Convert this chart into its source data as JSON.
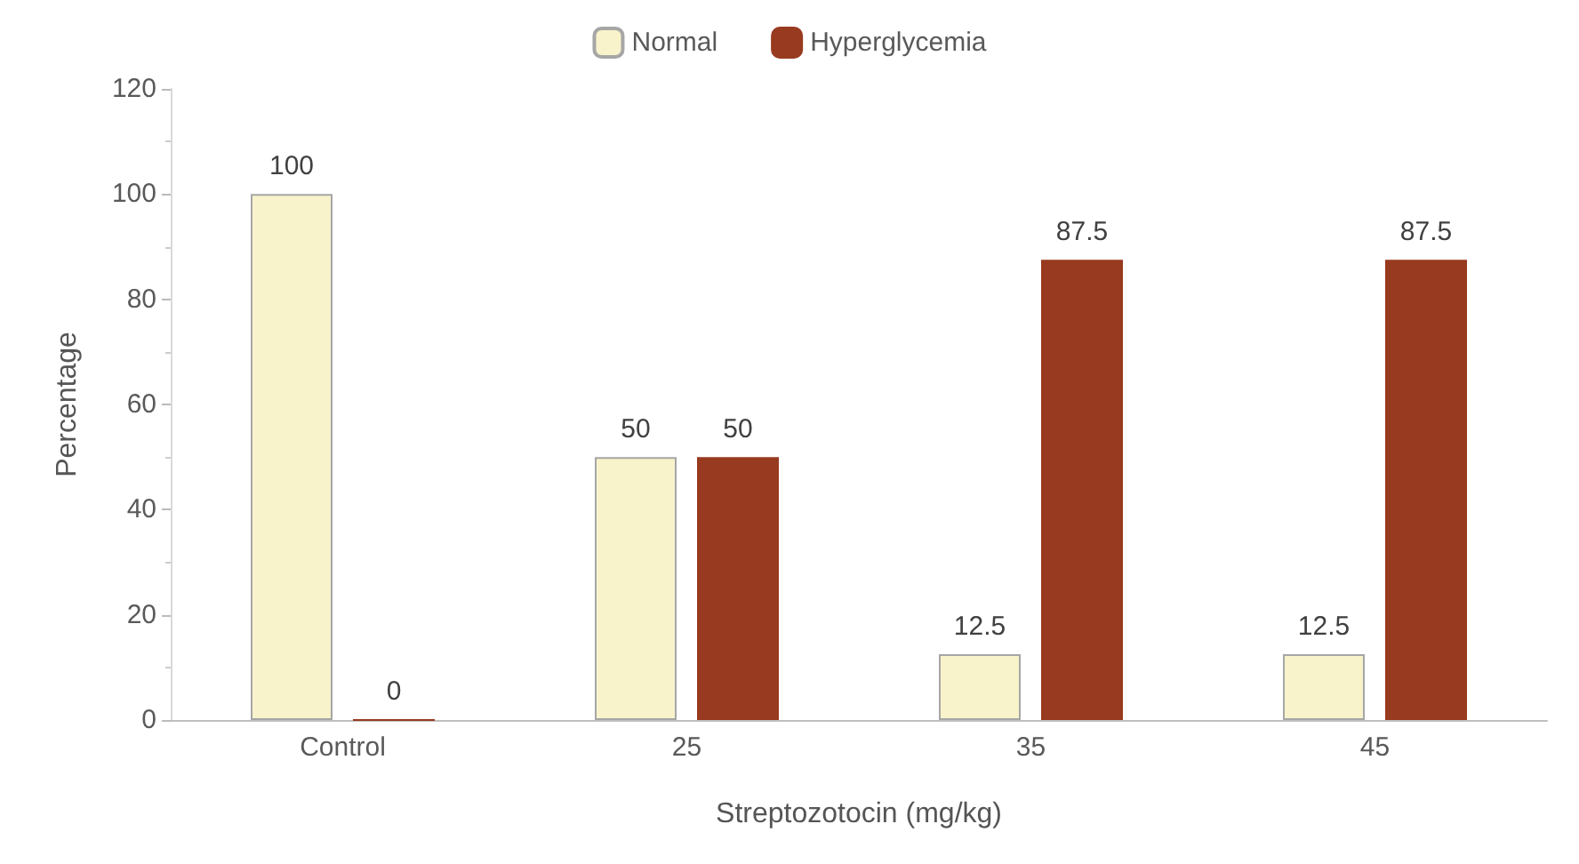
{
  "chart_data": {
    "type": "bar",
    "xlabel": "Streptozotocin (mg/kg)",
    "ylabel": "Percentage",
    "categories": [
      "Control",
      "25",
      "35",
      "45"
    ],
    "series": [
      {
        "name": "Normal",
        "color": "#f8f3cb",
        "values": [
          100,
          50,
          12.5,
          12.5
        ]
      },
      {
        "name": "Hyperglycemia",
        "color": "#983a1f",
        "values": [
          0,
          50,
          87.5,
          87.5
        ]
      }
    ],
    "ylim": [
      0,
      120
    ],
    "yticks": [
      0,
      20,
      40,
      60,
      80,
      100,
      120
    ],
    "grid": false,
    "legend": "top",
    "data_labels": true
  }
}
